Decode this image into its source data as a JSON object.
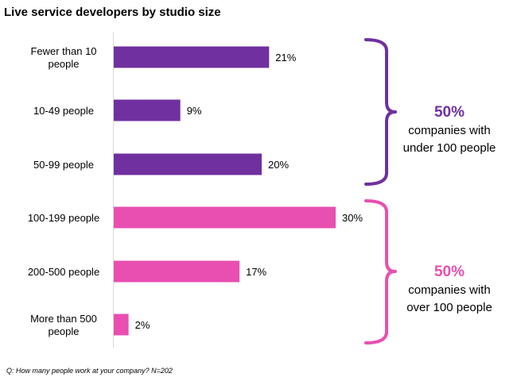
{
  "chart_data": {
    "type": "bar",
    "orientation": "horizontal",
    "title": "Live service developers by studio size",
    "categories": [
      [
        "Fewer than 10",
        "people"
      ],
      [
        "10-49 people"
      ],
      [
        "50-99 people"
      ],
      [
        "100-199 people"
      ],
      [
        "200-500 people"
      ],
      [
        "More than 500",
        "people"
      ]
    ],
    "values": [
      21,
      9,
      20,
      30,
      17,
      2
    ],
    "value_labels": [
      "21%",
      "9%",
      "20%",
      "30%",
      "17%",
      "2%"
    ],
    "value_unit": "%",
    "xlim": [
      0,
      30
    ],
    "grid": false,
    "group_of_bar": [
      0,
      0,
      0,
      1,
      1,
      1
    ],
    "groups": [
      {
        "percent_label": "50%",
        "line1": "companies with",
        "line2": "under 100 people",
        "color": "#7030a0"
      },
      {
        "percent_label": "50%",
        "line1": "companies with",
        "line2": "over 100 people",
        "color": "#e84fb0"
      }
    ],
    "footnote": "Q: How many people work at your company? N=202"
  }
}
